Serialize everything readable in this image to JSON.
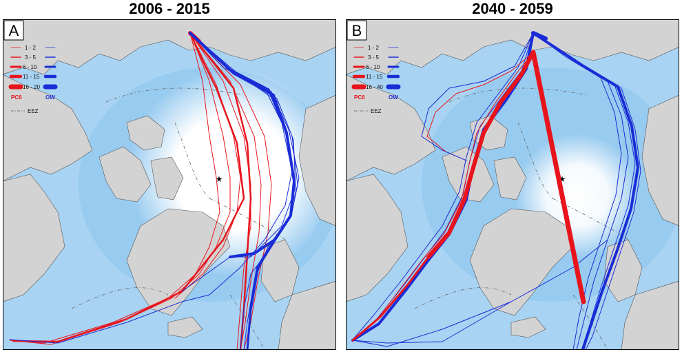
{
  "colors": {
    "ocean": "#a8d3f2",
    "ocean_deep": "#74b8eb",
    "land": "#d3d3d3",
    "coast": "#555555",
    "ice": "#ffffff",
    "pc6": "#e8141c",
    "ow": "#1a2cd6"
  },
  "panels": [
    {
      "title": "2006 - 2015",
      "letter": "A",
      "legend": {
        "ranges": [
          "1 - 2",
          "3 - 5",
          "6 - 10",
          "11 - 15",
          "16 - 20"
        ],
        "pc6_label": "PC6",
        "ow_label": "OW",
        "eez_label": "EEZ"
      }
    },
    {
      "title": "2040 - 2059",
      "letter": "B",
      "legend": {
        "ranges": [
          "1 - 2",
          "3 - 5",
          "6 - 10",
          "11 - 15",
          "16 - 40"
        ],
        "pc6_label": "PC6",
        "ow_label": "OW",
        "eez_label": "EEZ"
      }
    }
  ]
}
